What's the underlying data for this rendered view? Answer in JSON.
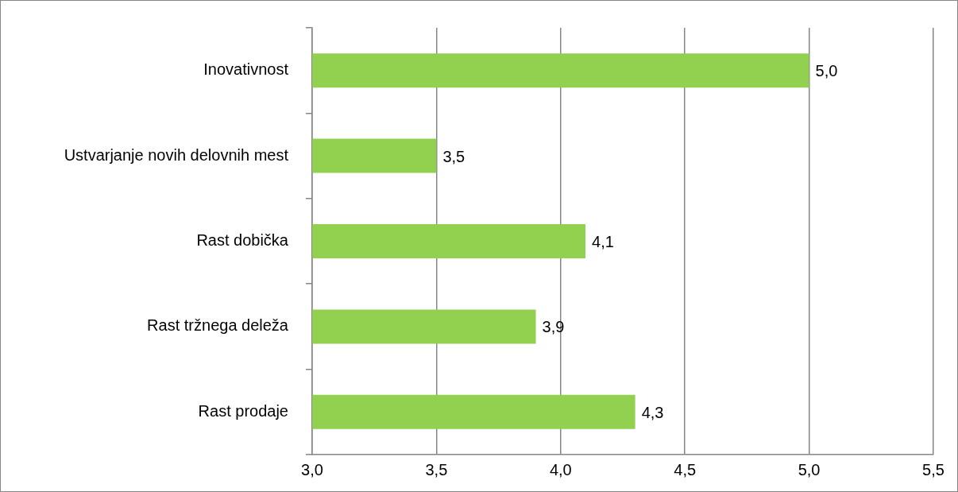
{
  "chart_data": {
    "type": "bar",
    "orientation": "horizontal",
    "categories": [
      "Inovativnost",
      "Ustvarjanje novih delovnih mest",
      "Rast dobička",
      "Rast tržnega deleža",
      "Rast prodaje"
    ],
    "values": [
      5.0,
      3.5,
      4.1,
      3.9,
      4.3
    ],
    "value_labels": [
      "5,0",
      "3,5",
      "4,1",
      "3,9",
      "4,3"
    ],
    "color": "#92d050",
    "xlim": [
      3.0,
      5.5
    ],
    "xticks": [
      {
        "value": 3.0,
        "label": "3,0"
      },
      {
        "value": 3.5,
        "label": "3,5"
      },
      {
        "value": 4.0,
        "label": "4,0"
      },
      {
        "value": 4.5,
        "label": "4,5"
      },
      {
        "value": 5.0,
        "label": "5,0"
      },
      {
        "value": 5.5,
        "label": "5,5"
      }
    ],
    "grid": "x",
    "legend": false
  }
}
